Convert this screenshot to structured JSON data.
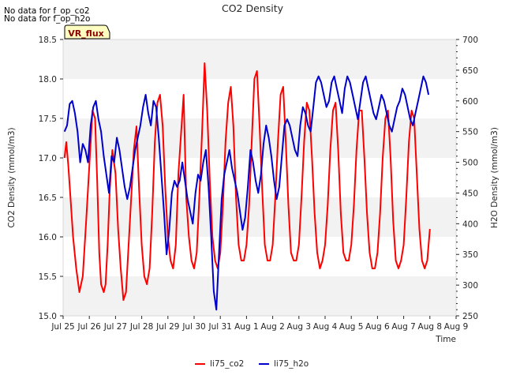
{
  "notes": [
    "No data for f_op_co2",
    "No data for f_op_h2o"
  ],
  "badge": "VR_flux",
  "chart_data": {
    "type": "line",
    "title": "CO2 Density",
    "xlabel": "Time",
    "ylabel": "CO2 Density (mmol/m3)",
    "y2label": "H2O Density (mmol/m3)",
    "x_ticks": [
      "Jul 25",
      "Jul 26",
      "Jul 27",
      "Jul 28",
      "Jul 29",
      "Jul 30",
      "Jul 31",
      "Aug 1",
      "Aug 2",
      "Aug 3",
      "Aug 4",
      "Aug 5",
      "Aug 6",
      "Aug 7",
      "Aug 8",
      "Aug 9"
    ],
    "xlim": [
      0,
      15
    ],
    "ylim": [
      15.0,
      18.5
    ],
    "y_ticks": [
      "15.0",
      "15.5",
      "16.0",
      "16.5",
      "17.0",
      "17.5",
      "18.0",
      "18.5"
    ],
    "y2lim": [
      250,
      700
    ],
    "y2_ticks": [
      "250",
      "300",
      "350",
      "400",
      "450",
      "500",
      "550",
      "600",
      "650",
      "700"
    ],
    "x_unit_note": "days since Jul 25",
    "grid": "horizontal bands",
    "legend": "bottom-center",
    "series": [
      {
        "name": "li75_co2",
        "color": "#ff0000",
        "axis": "left",
        "x": [
          0.05,
          0.12,
          0.2,
          0.28,
          0.38,
          0.5,
          0.62,
          0.75,
          0.88,
          1.0,
          1.12,
          1.22,
          1.3,
          1.38,
          1.45,
          1.55,
          1.62,
          1.7,
          1.78,
          1.88,
          2.0,
          2.1,
          2.2,
          2.3,
          2.4,
          2.5,
          2.6,
          2.7,
          2.8,
          2.9,
          3.0,
          3.1,
          3.2,
          3.3,
          3.4,
          3.5,
          3.6,
          3.7,
          3.8,
          3.9,
          4.0,
          4.1,
          4.2,
          4.3,
          4.4,
          4.5,
          4.6,
          4.7,
          4.8,
          4.9,
          5.0,
          5.1,
          5.2,
          5.3,
          5.4,
          5.5,
          5.6,
          5.7,
          5.8,
          5.9,
          6.0,
          6.1,
          6.2,
          6.3,
          6.4,
          6.5,
          6.6,
          6.7,
          6.8,
          6.9,
          7.0,
          7.1,
          7.2,
          7.3,
          7.4,
          7.5,
          7.6,
          7.7,
          7.8,
          7.9,
          8.0,
          8.1,
          8.2,
          8.3,
          8.4,
          8.5,
          8.6,
          8.7,
          8.8,
          8.9,
          9.0,
          9.1,
          9.2,
          9.3,
          9.4,
          9.5,
          9.6,
          9.7,
          9.8,
          9.9,
          10.0,
          10.1,
          10.2,
          10.3,
          10.4,
          10.5,
          10.6,
          10.7,
          10.8,
          10.9,
          11.0,
          11.1,
          11.2,
          11.3,
          11.4,
          11.5,
          11.6,
          11.7,
          11.8,
          11.9,
          12.0,
          12.1,
          12.2,
          12.3,
          12.4,
          12.5,
          12.6,
          12.7,
          12.8,
          12.9,
          13.0,
          13.1,
          13.2,
          13.3,
          13.4,
          13.5,
          13.6,
          13.7,
          13.8,
          13.9,
          14.0
        ],
        "values": [
          17.0,
          17.2,
          16.9,
          16.5,
          16.0,
          15.6,
          15.3,
          15.5,
          16.2,
          16.9,
          17.6,
          17.5,
          16.7,
          15.8,
          15.4,
          15.3,
          15.4,
          15.9,
          16.6,
          17.1,
          16.8,
          16.1,
          15.6,
          15.2,
          15.3,
          15.9,
          16.5,
          17.1,
          17.4,
          16.6,
          15.9,
          15.5,
          15.4,
          15.6,
          16.3,
          17.2,
          17.7,
          17.8,
          17.4,
          16.6,
          16.0,
          15.7,
          15.6,
          15.9,
          16.8,
          17.3,
          17.8,
          16.5,
          16.0,
          15.7,
          15.6,
          15.8,
          16.5,
          17.3,
          18.2,
          17.6,
          16.7,
          16.0,
          15.7,
          15.6,
          15.8,
          16.4,
          17.2,
          17.7,
          17.9,
          17.4,
          16.5,
          15.9,
          15.7,
          15.7,
          15.9,
          16.4,
          17.2,
          18.0,
          18.1,
          17.4,
          16.6,
          15.9,
          15.7,
          15.7,
          15.9,
          16.5,
          17.2,
          17.8,
          17.9,
          17.2,
          16.4,
          15.8,
          15.7,
          15.7,
          15.9,
          16.5,
          17.2,
          17.7,
          17.6,
          17.0,
          16.3,
          15.8,
          15.6,
          15.7,
          15.9,
          16.4,
          17.1,
          17.6,
          17.7,
          17.1,
          16.3,
          15.8,
          15.7,
          15.7,
          15.9,
          16.4,
          17.1,
          17.6,
          17.6,
          17.0,
          16.3,
          15.8,
          15.6,
          15.6,
          15.8,
          16.3,
          17.0,
          17.5,
          17.6,
          17.0,
          16.2,
          15.7,
          15.6,
          15.7,
          15.9,
          16.5,
          17.2,
          17.6,
          17.5,
          16.8,
          16.1,
          15.7,
          15.6,
          15.7,
          16.1
        ]
      },
      {
        "name": "li75_h2o",
        "color": "#0000cc",
        "axis": "right",
        "x": [
          0.05,
          0.15,
          0.25,
          0.35,
          0.45,
          0.55,
          0.65,
          0.75,
          0.85,
          0.95,
          1.05,
          1.15,
          1.25,
          1.35,
          1.45,
          1.55,
          1.65,
          1.75,
          1.85,
          1.95,
          2.05,
          2.15,
          2.25,
          2.35,
          2.45,
          2.55,
          2.65,
          2.75,
          2.85,
          2.95,
          3.05,
          3.15,
          3.25,
          3.35,
          3.45,
          3.55,
          3.65,
          3.75,
          3.85,
          3.95,
          4.05,
          4.15,
          4.25,
          4.35,
          4.45,
          4.55,
          4.65,
          4.75,
          4.85,
          4.95,
          5.05,
          5.15,
          5.25,
          5.35,
          5.45,
          5.55,
          5.65,
          5.75,
          5.85,
          5.95,
          6.05,
          6.15,
          6.25,
          6.35,
          6.45,
          6.55,
          6.65,
          6.75,
          6.85,
          6.95,
          7.05,
          7.15,
          7.25,
          7.35,
          7.45,
          7.55,
          7.65,
          7.75,
          7.85,
          7.95,
          8.05,
          8.15,
          8.25,
          8.35,
          8.45,
          8.55,
          8.65,
          8.75,
          8.85,
          8.95,
          9.05,
          9.15,
          9.25,
          9.35,
          9.45,
          9.55,
          9.65,
          9.75,
          9.85,
          9.95,
          10.05,
          10.15,
          10.25,
          10.35,
          10.45,
          10.55,
          10.65,
          10.75,
          10.85,
          10.95,
          11.05,
          11.15,
          11.25,
          11.35,
          11.45,
          11.55,
          11.65,
          11.75,
          11.85,
          11.95,
          12.05,
          12.15,
          12.25,
          12.35,
          12.45,
          12.55,
          12.65,
          12.75,
          12.85,
          12.95,
          13.05,
          13.15,
          13.25,
          13.35,
          13.45,
          13.55,
          13.65,
          13.75,
          13.85,
          13.95
        ],
        "values": [
          550,
          560,
          595,
          600,
          580,
          550,
          500,
          530,
          520,
          500,
          560,
          590,
          600,
          570,
          550,
          510,
          480,
          450,
          510,
          500,
          540,
          520,
          490,
          460,
          440,
          460,
          490,
          520,
          540,
          560,
          590,
          610,
          580,
          560,
          600,
          590,
          540,
          480,
          420,
          350,
          390,
          450,
          470,
          460,
          470,
          500,
          470,
          440,
          420,
          400,
          450,
          480,
          470,
          500,
          520,
          460,
          380,
          290,
          260,
          350,
          440,
          480,
          500,
          520,
          490,
          470,
          450,
          420,
          390,
          410,
          460,
          520,
          500,
          470,
          450,
          480,
          530,
          560,
          540,
          510,
          470,
          440,
          460,
          510,
          560,
          570,
          560,
          540,
          520,
          510,
          560,
          590,
          580,
          560,
          550,
          590,
          630,
          640,
          630,
          610,
          590,
          600,
          630,
          640,
          620,
          600,
          580,
          620,
          640,
          630,
          610,
          590,
          570,
          600,
          630,
          640,
          620,
          600,
          580,
          570,
          590,
          610,
          600,
          580,
          560,
          550,
          570,
          590,
          600,
          620,
          610,
          590,
          570,
          560,
          580,
          600,
          620,
          640,
          630,
          610
        ]
      }
    ]
  }
}
